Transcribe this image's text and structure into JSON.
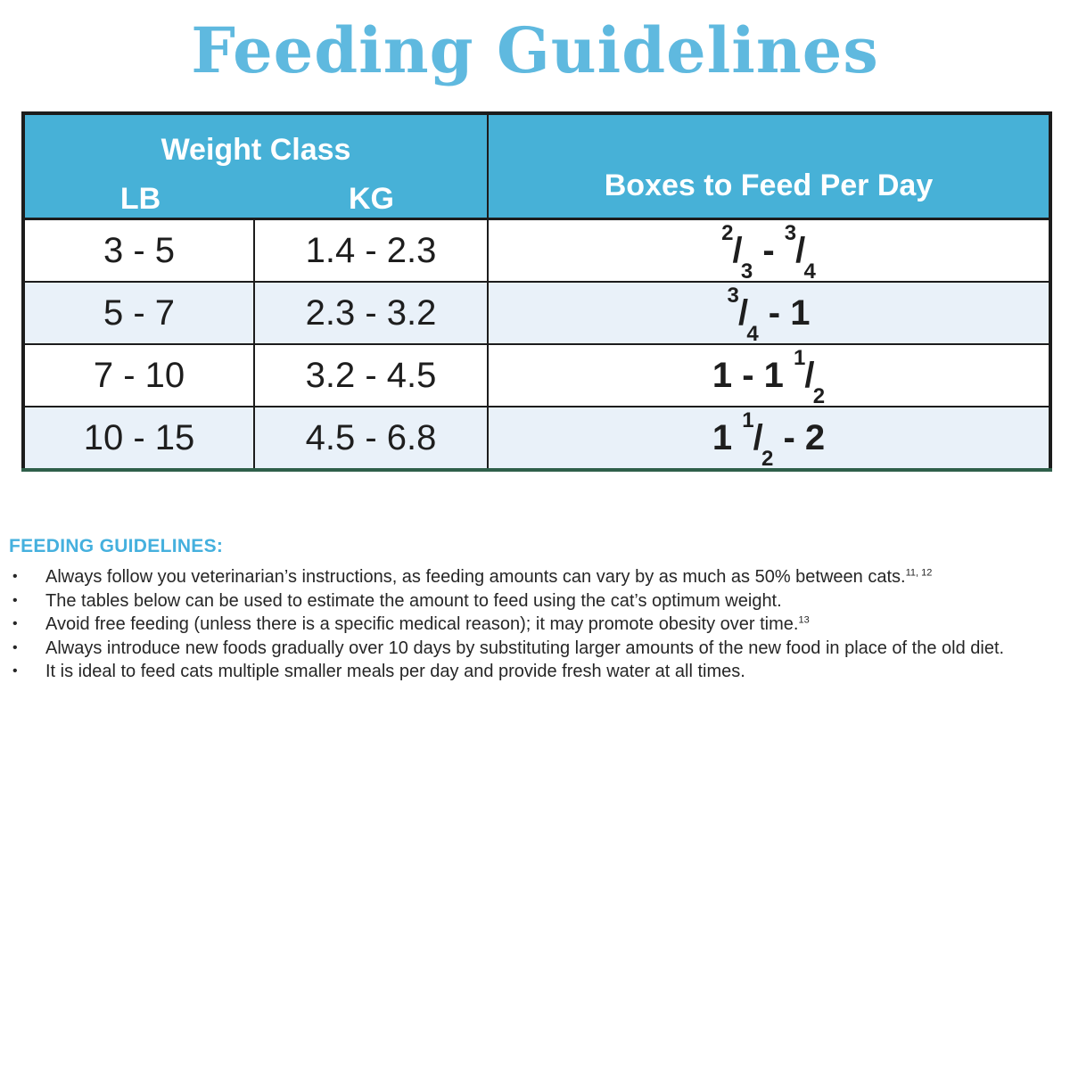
{
  "title": "Feeding Guidelines",
  "table": {
    "weight_class_label": "Weight Class",
    "lb_label": "LB",
    "kg_label": "KG",
    "boxes_label": "Boxes to Feed Per Day",
    "rows": [
      {
        "lb": "3 - 5",
        "kg": "1.4 - 2.3",
        "boxes": "2/3 - 3/4"
      },
      {
        "lb": "5 - 7",
        "kg": "2.3 - 3.2",
        "boxes": "3/4 - 1"
      },
      {
        "lb": "7 - 10",
        "kg": "3.2 - 4.5",
        "boxes": "1 - 1 1/2"
      },
      {
        "lb": "10 - 15",
        "kg": "4.5 - 6.8",
        "boxes": "1 1/2 - 2"
      }
    ]
  },
  "notes": {
    "heading": "FEEDING GUIDELINES:",
    "bullet": "•",
    "items": [
      {
        "text": "Always follow you veterinarian’s instructions, as feeding amounts can vary by as much as 50% between cats.^{11, 12}"
      },
      {
        "text": "The tables below can be used to estimate the amount to feed using the cat’s optimum weight."
      },
      {
        "text": "Avoid free feeding (unless there is a specific medical reason); it may promote obesity over time.^{13}"
      },
      {
        "text": "Always introduce new foods gradually over 10 days by substituting larger amounts of the new food in place of the old diet."
      },
      {
        "text": "It is ideal to feed cats multiple smaller meals per day and provide fresh water at all times."
      }
    ]
  },
  "colors": {
    "title_blue": "#5fb9df",
    "header_blue": "#47b1d7",
    "row_alt_blue": "#e9f1f9",
    "heading_blue": "#45b0de",
    "border_dark": "#1c1c1c",
    "table_bottom_green": "#2f5f4a"
  }
}
